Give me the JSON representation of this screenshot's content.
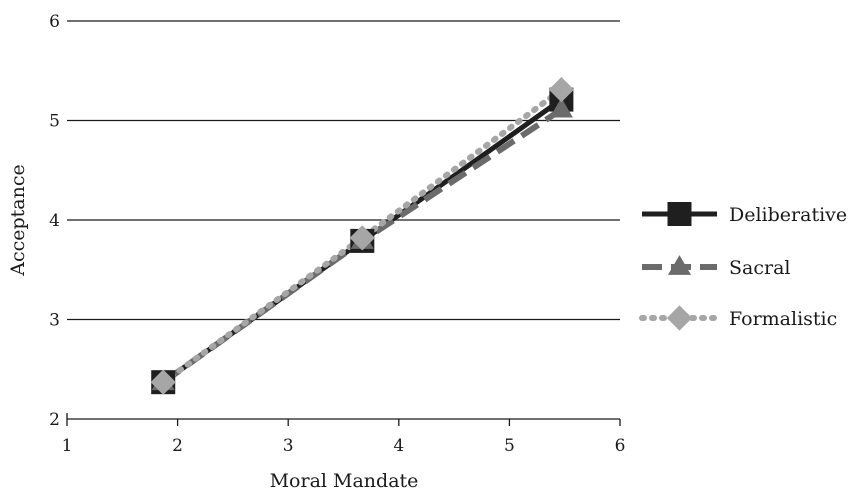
{
  "chart_data": {
    "type": "line",
    "xlabel": "Moral Mandate",
    "ylabel": "Acceptance",
    "xlim": [
      1,
      6
    ],
    "ylim": [
      2,
      6
    ],
    "xticks": [
      1,
      2,
      3,
      4,
      5,
      6
    ],
    "yticks": [
      2,
      3,
      4,
      5,
      6
    ],
    "grid": "horizontal",
    "legend_position": "right",
    "series": [
      {
        "name": "Deliberative",
        "x": [
          1.87,
          3.67,
          5.47
        ],
        "y": [
          2.37,
          3.79,
          5.21
        ],
        "color": "#1f1f1f",
        "line_style": "solid",
        "marker": "square"
      },
      {
        "name": "Sacral",
        "x": [
          1.87,
          3.67,
          5.47
        ],
        "y": [
          2.37,
          3.79,
          5.11
        ],
        "color": "#6b6b6b",
        "line_style": "dashed",
        "marker": "triangle"
      },
      {
        "name": "Formalistic",
        "x": [
          1.87,
          3.67,
          5.47
        ],
        "y": [
          2.37,
          3.82,
          5.31
        ],
        "color": "#a6a6a6",
        "line_style": "dotted",
        "marker": "diamond"
      }
    ]
  }
}
